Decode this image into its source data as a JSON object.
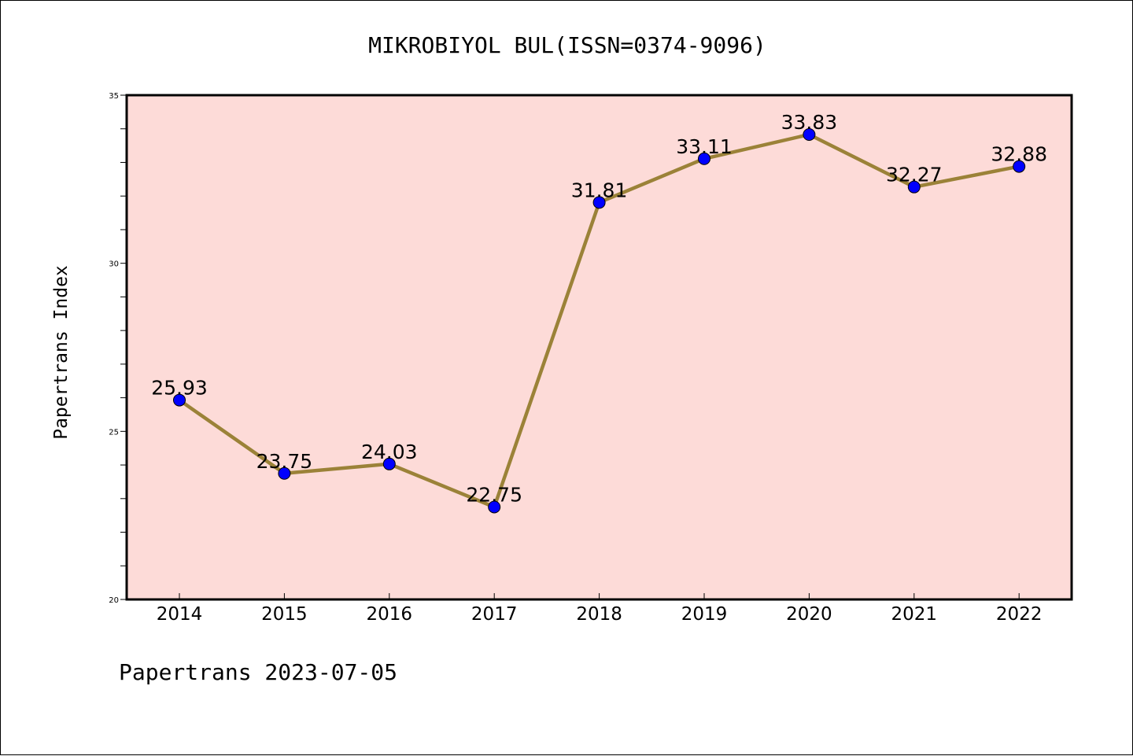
{
  "chart_data": {
    "type": "line",
    "title": "MIKROBIYOL BUL(ISSN=0374-9096)",
    "ylabel": "Papertrans Index",
    "xlabel": "",
    "footer": "Papertrans 2023-07-05",
    "categories": [
      "2014",
      "2015",
      "2016",
      "2017",
      "2018",
      "2019",
      "2020",
      "2021",
      "2022"
    ],
    "values": [
      25.93,
      23.75,
      24.03,
      22.75,
      31.81,
      33.11,
      33.83,
      32.27,
      32.88
    ],
    "value_labels": [
      "25.93",
      "23.75",
      "24.03",
      "22.75",
      "31.81",
      "33.11",
      "33.83",
      "32.27",
      "32.88"
    ],
    "ylim": [
      20,
      35
    ],
    "yticks": [
      "20",
      "25",
      "30",
      "35"
    ],
    "grid": false,
    "colors": {
      "plot_background": "#fddbd8",
      "line": "#9b8238",
      "marker": "#0000ff"
    }
  }
}
